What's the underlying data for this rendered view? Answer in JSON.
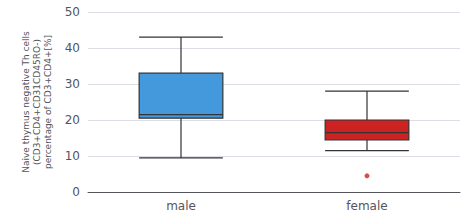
{
  "chart_data": {
    "type": "box",
    "ylabel": "Naive thymus negative Th cells\n(CD3+CD4+CD31CD45RO-)\npercentage of CD3+CD4+[%]",
    "categories": [
      "male",
      "female"
    ],
    "values": [
      [
        9.5,
        20.5,
        21.5,
        33.0,
        43.0
      ],
      [
        11.5,
        14.5,
        16.5,
        20.0,
        28.0
      ]
    ],
    "outliers": [
      [],
      [
        4.5
      ]
    ],
    "colors": [
      "#4499DD",
      "#CC2222"
    ],
    "ylim": [
      0,
      50
    ],
    "yticks": [
      0,
      10,
      20,
      30,
      40,
      50
    ],
    "grid": true
  }
}
